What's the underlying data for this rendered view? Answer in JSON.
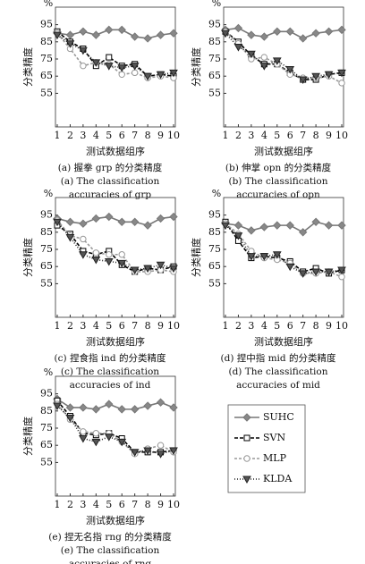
{
  "legend": {
    "entries": [
      {
        "name": "SUHC",
        "color": "#777777",
        "marker": "diamond",
        "dash": "none",
        "fill": "#888888"
      },
      {
        "name": "SVN",
        "color": "#000000",
        "marker": "square",
        "dash": "4 2",
        "fill": "#ffffff"
      },
      {
        "name": "MLP",
        "color": "#999999",
        "marker": "circle",
        "dash": "3 2",
        "fill": "#ffffff"
      },
      {
        "name": "KLDA",
        "color": "#222222",
        "marker": "triangle-down",
        "dash": "1 2",
        "fill": "#555555"
      }
    ]
  },
  "chart_data": [
    {
      "type": "line",
      "unit": "%",
      "ylabel": "分类精度",
      "xlabel": "测试数据组序",
      "captions": [
        "(a) 握拳 grp 的分类精度",
        "(a) The classification",
        "accuracies of grp"
      ],
      "x": [
        1,
        2,
        3,
        4,
        5,
        6,
        7,
        8,
        9,
        10
      ],
      "xlim": [
        1,
        10
      ],
      "xticks": [
        1,
        2,
        3,
        4,
        5,
        6,
        7,
        8,
        9,
        10
      ],
      "ylim": [
        50,
        100
      ],
      "yticks": [
        55,
        65,
        75,
        85,
        95
      ],
      "series": [
        {
          "values": [
            90,
            89,
            91,
            89,
            92,
            92,
            88,
            87,
            89,
            90
          ]
        },
        {
          "values": [
            91,
            85,
            81,
            71,
            76,
            71,
            72,
            65,
            66,
            65
          ]
        },
        {
          "values": [
            90,
            81,
            71,
            73,
            72,
            66,
            67,
            64,
            65,
            64
          ]
        },
        {
          "values": [
            89,
            84,
            80,
            73,
            71,
            70,
            71,
            65,
            66,
            67
          ]
        }
      ]
    },
    {
      "type": "line",
      "unit": "%",
      "ylabel": "分类精度",
      "xlabel": "测试数据组序",
      "captions": [
        "(b) 伸掌 opn 的分类精度",
        "(b) The classification",
        "accuracies of opn"
      ],
      "x": [
        1,
        2,
        3,
        4,
        5,
        6,
        7,
        8,
        9,
        10
      ],
      "xlim": [
        1,
        10
      ],
      "xticks": [
        1,
        2,
        3,
        4,
        5,
        6,
        7,
        8,
        9,
        10
      ],
      "ylim": [
        50,
        100
      ],
      "yticks": [
        55,
        65,
        75,
        85,
        95
      ],
      "series": [
        {
          "values": [
            92,
            93,
            89,
            88,
            91,
            91,
            87,
            90,
            91,
            92
          ]
        },
        {
          "values": [
            91,
            85,
            77,
            72,
            72,
            67,
            63,
            63,
            66,
            67
          ]
        },
        {
          "values": [
            91,
            84,
            75,
            76,
            72,
            66,
            64,
            64,
            65,
            61
          ]
        },
        {
          "values": [
            90,
            82,
            78,
            71,
            74,
            69,
            63,
            65,
            66,
            67
          ]
        }
      ]
    },
    {
      "type": "line",
      "unit": "%",
      "ylabel": "分类精度",
      "xlabel": "测试数据组序",
      "captions": [
        "(c) 捏食指 ind 的分类精度",
        "(c) The classification",
        "accuracies of ind"
      ],
      "x": [
        1,
        2,
        3,
        4,
        5,
        6,
        7,
        8,
        9,
        10
      ],
      "xlim": [
        1,
        10
      ],
      "xticks": [
        1,
        2,
        3,
        4,
        5,
        6,
        7,
        8,
        9,
        10
      ],
      "ylim": [
        50,
        100
      ],
      "yticks": [
        55,
        65,
        75,
        85,
        95
      ],
      "series": [
        {
          "values": [
            93,
            91,
            90,
            93,
            94,
            91,
            91,
            89,
            93,
            94
          ]
        },
        {
          "values": [
            89,
            84,
            74,
            72,
            74,
            66,
            62,
            64,
            63,
            65
          ]
        },
        {
          "values": [
            92,
            83,
            81,
            73,
            72,
            72,
            62,
            62,
            63,
            62
          ]
        },
        {
          "values": [
            91,
            82,
            72,
            69,
            68,
            67,
            63,
            64,
            66,
            64
          ]
        }
      ]
    },
    {
      "type": "line",
      "unit": "%",
      "ylabel": "分类精度",
      "xlabel": "测试数据组序",
      "captions": [
        "(d) 捏中指 mid 的分类精度",
        "(d) The classification",
        "accuracies of mid"
      ],
      "x": [
        1,
        2,
        3,
        4,
        5,
        6,
        7,
        8,
        9,
        10
      ],
      "xlim": [
        1,
        10
      ],
      "xticks": [
        1,
        2,
        3,
        4,
        5,
        6,
        7,
        8,
        9,
        10
      ],
      "ylim": [
        50,
        100
      ],
      "yticks": [
        55,
        65,
        75,
        85,
        95
      ],
      "series": [
        {
          "values": [
            90,
            89,
            86,
            88,
            89,
            89,
            85,
            91,
            89,
            89
          ]
        },
        {
          "values": [
            91,
            80,
            70,
            71,
            70,
            68,
            62,
            64,
            61,
            63
          ]
        },
        {
          "values": [
            90,
            84,
            74,
            70,
            69,
            67,
            61,
            61,
            62,
            59
          ]
        },
        {
          "values": [
            89,
            83,
            71,
            71,
            72,
            65,
            61,
            62,
            62,
            63
          ]
        }
      ]
    },
    {
      "type": "line",
      "unit": "%",
      "ylabel": "分类精度",
      "xlabel": "测试数据组序",
      "captions": [
        "(e) 捏无名指 rng 的分类精度",
        "(e) The classification",
        "accuracies of rng"
      ],
      "x": [
        1,
        2,
        3,
        4,
        5,
        6,
        7,
        8,
        9,
        10
      ],
      "xlim": [
        1,
        10
      ],
      "xticks": [
        1,
        2,
        3,
        4,
        5,
        6,
        7,
        8,
        9,
        10
      ],
      "ylim": [
        50,
        100
      ],
      "yticks": [
        55,
        65,
        75,
        85,
        95
      ],
      "series": [
        {
          "values": [
            92,
            87,
            87,
            86,
            89,
            86,
            86,
            88,
            90,
            87
          ]
        },
        {
          "values": [
            91,
            82,
            72,
            71,
            72,
            69,
            61,
            61,
            61,
            62
          ]
        },
        {
          "values": [
            89,
            80,
            73,
            72,
            72,
            67,
            60,
            63,
            65,
            61
          ]
        },
        {
          "values": [
            88,
            81,
            69,
            67,
            70,
            67,
            61,
            62,
            60,
            62
          ]
        }
      ]
    }
  ]
}
